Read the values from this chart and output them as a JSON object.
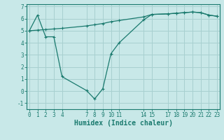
{
  "line1_x": [
    0,
    1,
    2,
    3,
    4,
    7,
    8,
    9,
    10,
    11,
    14,
    15,
    17,
    18,
    19,
    20,
    21,
    22,
    23
  ],
  "line1_y": [
    5.0,
    5.05,
    5.1,
    5.15,
    5.2,
    5.4,
    5.5,
    5.6,
    5.75,
    5.85,
    6.15,
    6.35,
    6.4,
    6.45,
    6.5,
    6.55,
    6.5,
    6.3,
    6.2
  ],
  "line2_x": [
    0,
    1,
    2,
    3,
    4,
    7,
    8,
    9,
    10,
    11,
    14,
    15,
    17,
    18,
    19,
    20,
    21,
    22,
    23
  ],
  "line2_y": [
    5.0,
    6.3,
    4.5,
    4.5,
    1.2,
    0.05,
    -0.65,
    0.2,
    3.1,
    4.0,
    5.9,
    6.35,
    6.4,
    6.45,
    6.5,
    6.55,
    6.5,
    6.3,
    6.2
  ],
  "line_color": "#1a7a6e",
  "bg_color": "#c8e8e8",
  "grid_color": "#a8d0d0",
  "xlabel": "Humidex (Indice chaleur)",
  "ylim": [
    -1.5,
    7.2
  ],
  "xlim": [
    -0.3,
    23.3
  ],
  "xticks": [
    0,
    1,
    2,
    3,
    4,
    7,
    8,
    9,
    10,
    11,
    14,
    15,
    17,
    18,
    19,
    20,
    21,
    22,
    23
  ],
  "yticks": [
    -1,
    0,
    1,
    2,
    3,
    4,
    5,
    6,
    7
  ],
  "tick_fontsize": 5.5,
  "xlabel_fontsize": 7.0
}
